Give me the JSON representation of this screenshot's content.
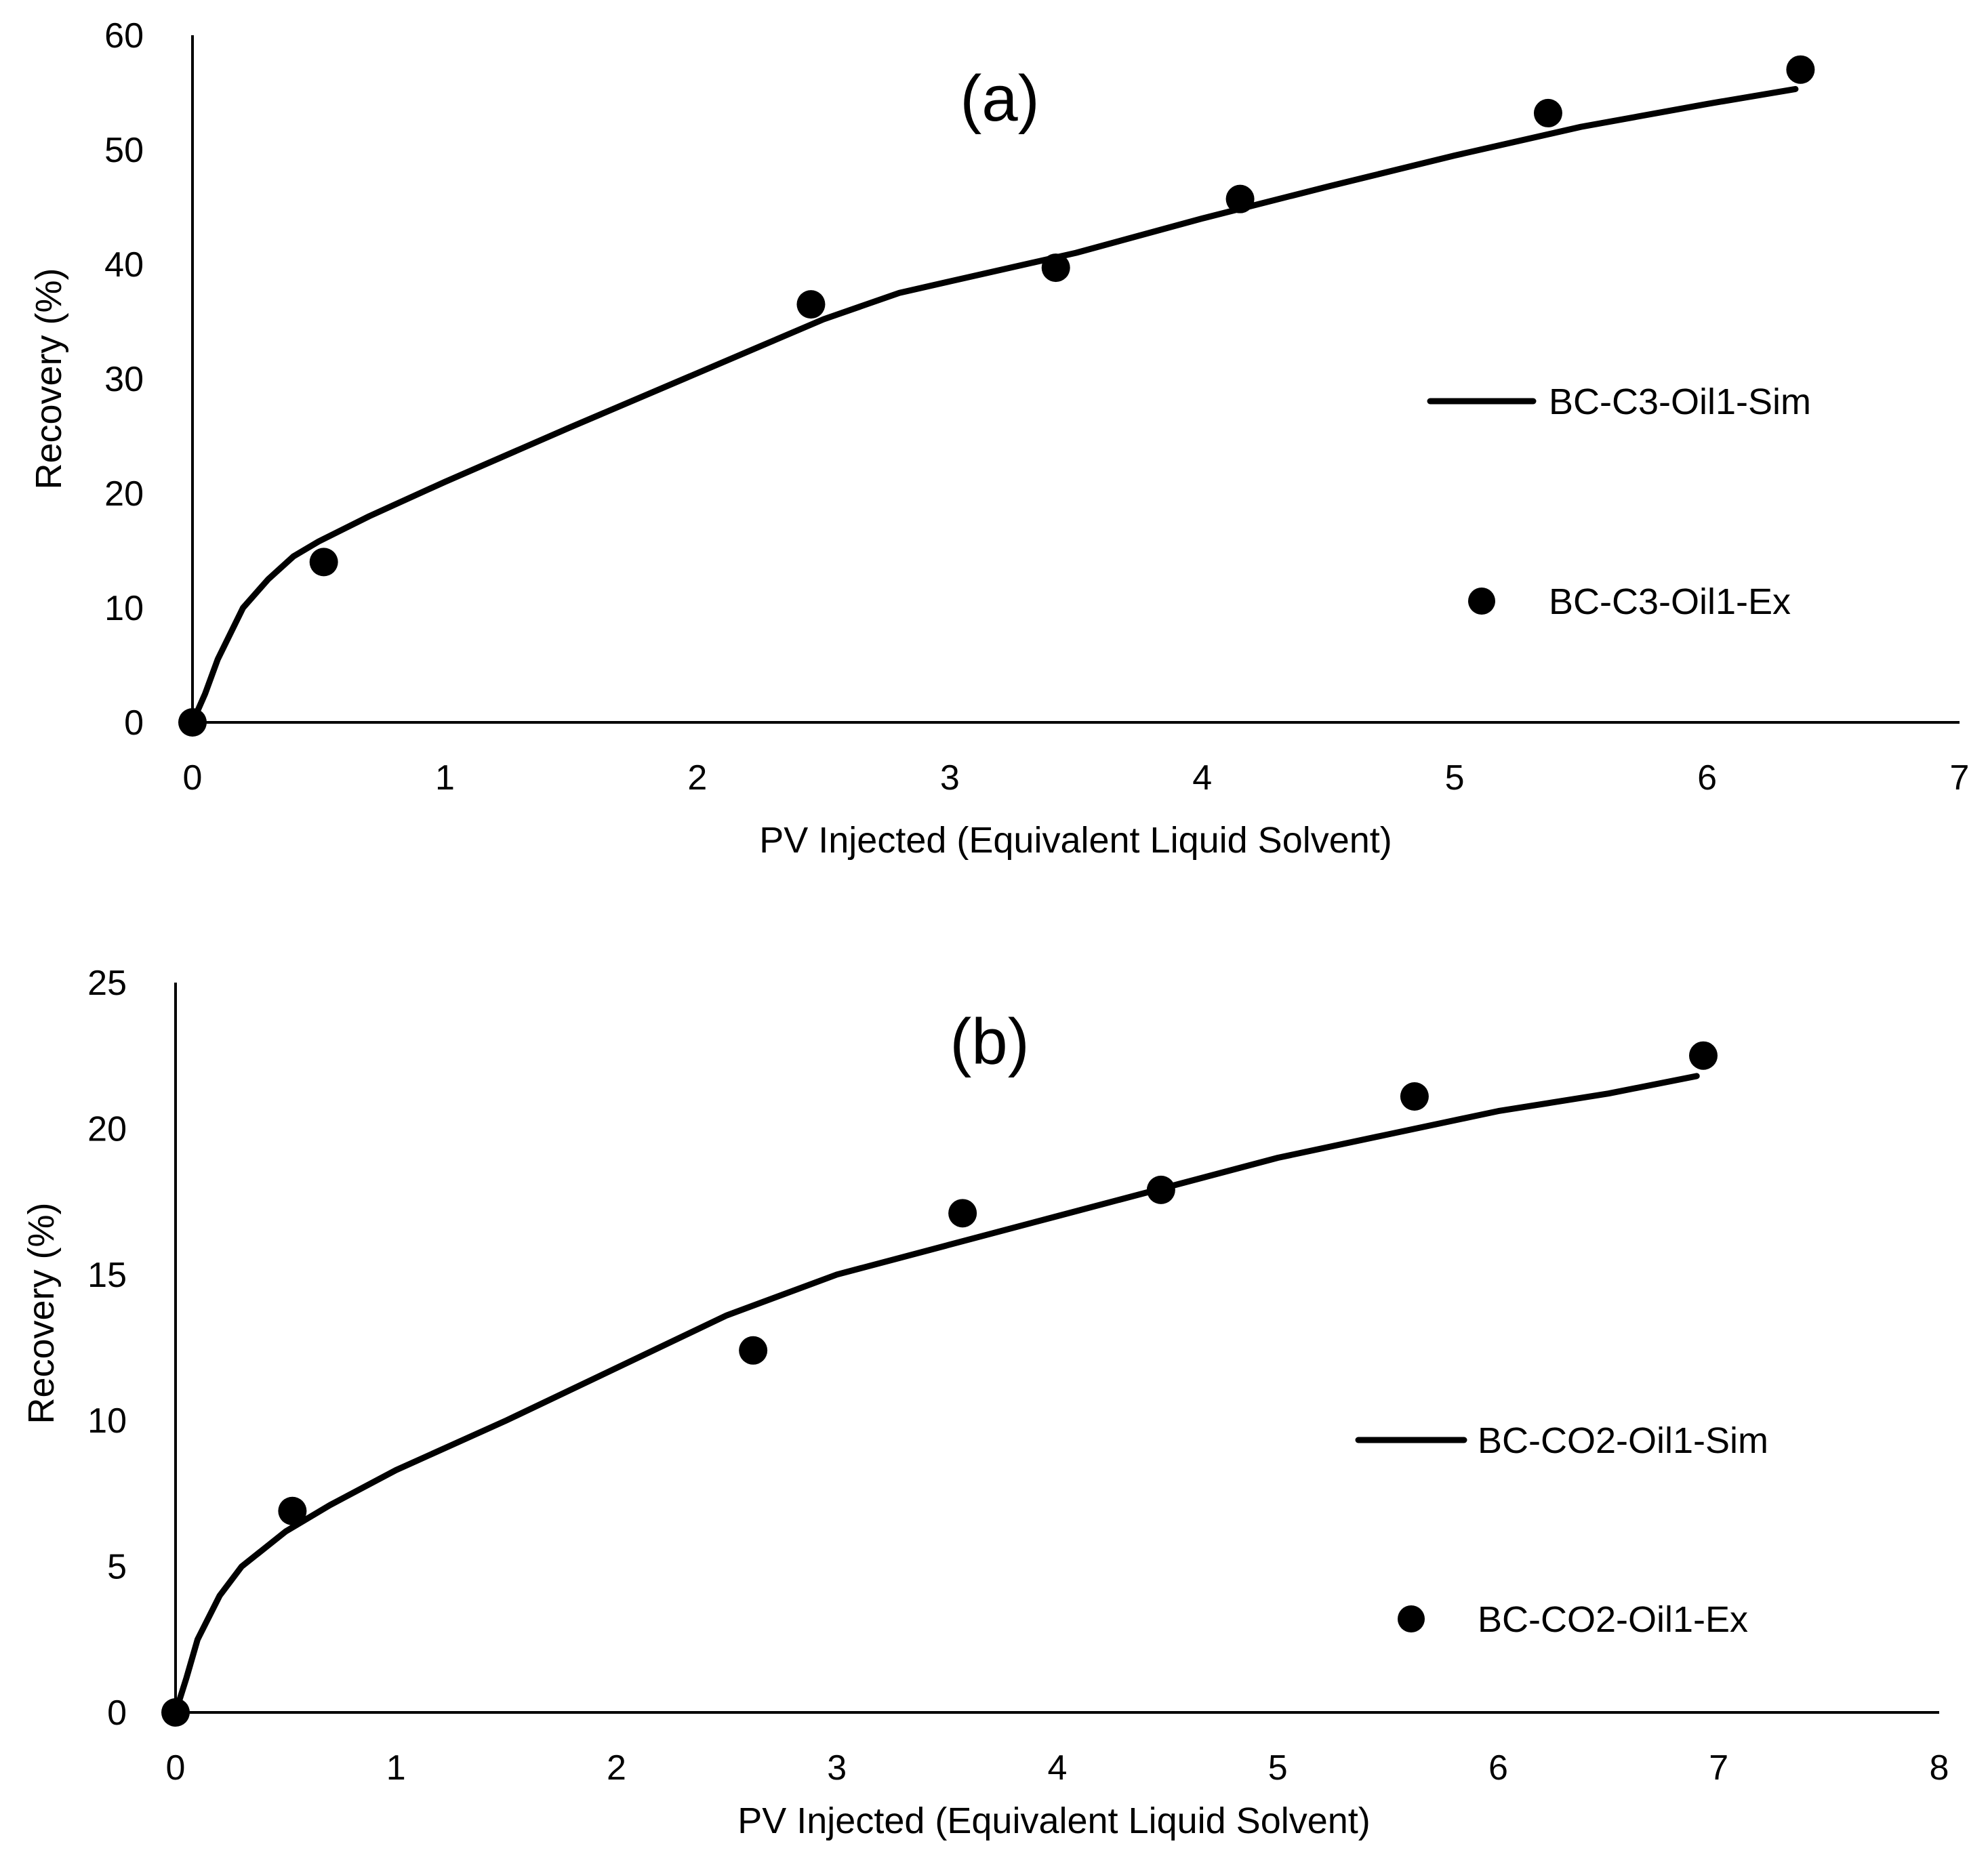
{
  "chart_data": [
    {
      "type": "scatter",
      "panel_label": "(a)",
      "xlabel": "PV Injected (Equivalent Liquid Solvent)",
      "ylabel": "Recovery (%)",
      "xlim": [
        0,
        7
      ],
      "ylim": [
        0,
        60
      ],
      "xticks": [
        "0",
        "1",
        "2",
        "3",
        "4",
        "5",
        "6",
        "7"
      ],
      "yticks": [
        "0",
        "10",
        "20",
        "30",
        "40",
        "50",
        "60"
      ],
      "grid": false,
      "legend_position": "right",
      "series": [
        {
          "name": "BC-C3-Oil1-Sim",
          "kind": "line",
          "x": [
            0,
            0.05,
            0.1,
            0.2,
            0.3,
            0.4,
            0.5,
            0.7,
            1.0,
            1.5,
            2.0,
            2.5,
            2.8,
            3.0,
            3.5,
            4.0,
            4.5,
            5.0,
            5.5,
            6.0,
            6.35
          ],
          "y": [
            0,
            2.5,
            5.5,
            10.0,
            12.5,
            14.5,
            15.8,
            18.0,
            21.0,
            25.8,
            30.5,
            35.2,
            37.5,
            38.5,
            41.0,
            44.0,
            46.8,
            49.5,
            52.0,
            54.0,
            55.3
          ]
        },
        {
          "name": "BC-C3-Oil1-Ex",
          "kind": "points",
          "x": [
            0,
            0.52,
            2.45,
            3.42,
            4.15,
            5.37,
            6.37
          ],
          "y": [
            0,
            14.0,
            36.5,
            39.7,
            45.7,
            53.2,
            57.0
          ]
        }
      ]
    },
    {
      "type": "scatter",
      "panel_label": "(b)",
      "xlabel": "PV Injected (Equivalent Liquid Solvent)",
      "ylabel": "Recovery (%)",
      "xlim": [
        0,
        8
      ],
      "ylim": [
        0,
        25
      ],
      "xticks": [
        "0",
        "1",
        "2",
        "3",
        "4",
        "5",
        "6",
        "7",
        "8"
      ],
      "yticks": [
        "0",
        "5",
        "10",
        "15",
        "20",
        "25"
      ],
      "grid": false,
      "legend_position": "right",
      "series": [
        {
          "name": "BC-CO2-Oil1-Sim",
          "kind": "line",
          "x": [
            0,
            0.05,
            0.1,
            0.2,
            0.3,
            0.5,
            0.7,
            1.0,
            1.5,
            2.0,
            2.5,
            3.0,
            3.5,
            4.0,
            4.5,
            5.0,
            5.5,
            6.0,
            6.5,
            6.9
          ],
          "y": [
            0,
            1.2,
            2.5,
            4.0,
            5.0,
            6.2,
            7.1,
            8.3,
            10.0,
            11.8,
            13.6,
            15.0,
            16.0,
            17.0,
            18.0,
            19.0,
            19.8,
            20.6,
            21.2,
            21.8
          ]
        },
        {
          "name": "BC-CO2-Oil1-Ex",
          "kind": "points",
          "x": [
            0,
            0.53,
            2.62,
            3.57,
            4.47,
            5.62,
            6.93
          ],
          "y": [
            0,
            6.9,
            12.4,
            17.1,
            17.9,
            21.1,
            22.5
          ]
        }
      ]
    }
  ]
}
